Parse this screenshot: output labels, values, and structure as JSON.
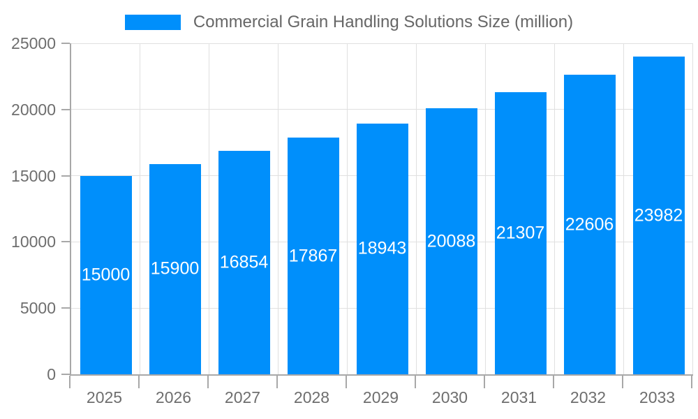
{
  "legend": {
    "label": "Commercial Grain Handling Solutions Size (million)"
  },
  "chart_data": {
    "type": "bar",
    "title": "Commercial Grain Handling Solutions Size (million)",
    "categories": [
      "2025",
      "2026",
      "2027",
      "2028",
      "2029",
      "2030",
      "2031",
      "2032",
      "2033"
    ],
    "values": [
      15000,
      15900,
      16854,
      17867,
      18943,
      20088,
      21307,
      22606,
      23982
    ],
    "xlabel": "",
    "ylabel": "",
    "ylim": [
      0,
      25000
    ],
    "yticks": [
      0,
      5000,
      10000,
      15000,
      20000,
      25000
    ],
    "grid": "horizontal gridlines plus vertical lines at category boundaries",
    "legend_position": "top-center",
    "value_labels": "white, centered inside bars",
    "colors": {
      "bar": "#008FFB",
      "value_label": "#FFFFFF",
      "grid": "#E0E0E0",
      "axis": "#A8A8A8",
      "tick_label": "#6E6E6E",
      "legend_text": "#666666",
      "background": "#FFFFFF"
    }
  }
}
